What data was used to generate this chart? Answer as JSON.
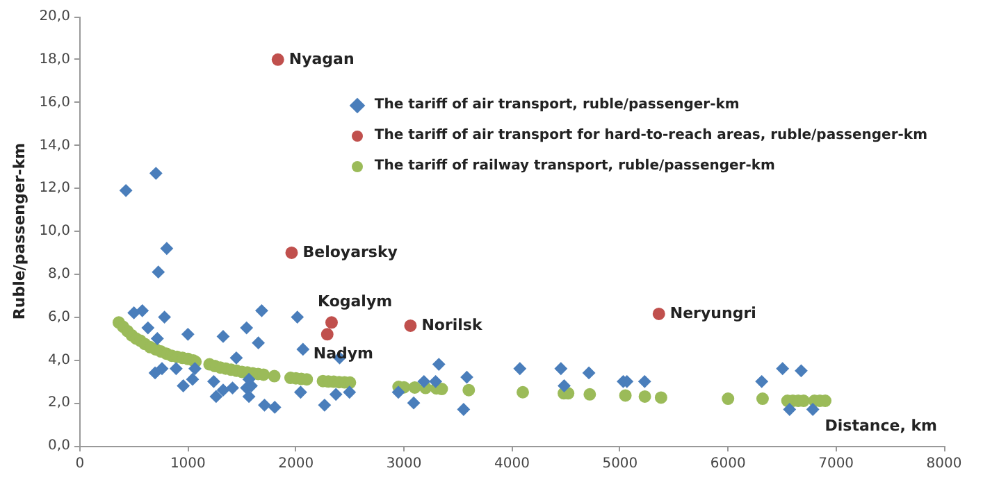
{
  "chart_data": {
    "type": "scatter",
    "xlabel": "Distance, km",
    "ylabel": "Ruble/passenger-km",
    "xlim": [
      0,
      8000
    ],
    "xticks": [
      0,
      1000,
      2000,
      3000,
      4000,
      5000,
      6000,
      7000,
      8000
    ],
    "ylim": [
      0,
      20
    ],
    "yticks": [
      {
        "value": 0,
        "label": "0,0"
      },
      {
        "value": 2,
        "label": "2,0"
      },
      {
        "value": 4,
        "label": "4,0"
      },
      {
        "value": 6,
        "label": "6,0"
      },
      {
        "value": 8,
        "label": "8,0"
      },
      {
        "value": 10,
        "label": "10,0"
      },
      {
        "value": 12,
        "label": "12,0"
      },
      {
        "value": 14,
        "label": "14,0"
      },
      {
        "value": 16,
        "label": "16,0"
      },
      {
        "value": 18,
        "label": "18,0"
      },
      {
        "value": 20,
        "label": "20,0"
      }
    ],
    "grid": false,
    "legend": "top right",
    "series": [
      {
        "name": "The tariff of air transport, ruble/passenger-km",
        "color": "#4a7ebb",
        "marker": "diamond",
        "x": [
          426,
          704,
          804,
          726,
          783,
          500,
          578,
          630,
          717,
          1000,
          1326,
          1543,
          1683,
          1652,
          2013,
          2065,
          2404,
          696,
          760,
          891,
          957,
          1043,
          1065,
          1239,
          1261,
          1326,
          1413,
          1448,
          1543,
          1565,
          1587,
          1565,
          1709,
          1804,
          2043,
          2265,
          2370,
          2496,
          2948,
          3090,
          3185,
          3323,
          3293,
          3582,
          3552,
          4073,
          4453,
          4483,
          4712,
          5030,
          5064,
          5228,
          6312,
          6505,
          6677,
          6570,
          6785
        ],
        "values": [
          11.9,
          12.7,
          9.2,
          8.1,
          6.0,
          6.2,
          6.3,
          5.5,
          5.0,
          5.2,
          5.1,
          5.5,
          6.3,
          4.8,
          6.0,
          4.5,
          4.1,
          3.4,
          3.6,
          3.6,
          2.8,
          3.1,
          3.6,
          3.0,
          2.3,
          2.6,
          2.7,
          4.1,
          2.7,
          2.3,
          2.8,
          3.1,
          1.9,
          1.8,
          2.5,
          1.9,
          2.4,
          2.5,
          2.5,
          2.0,
          3.0,
          3.8,
          3.0,
          3.2,
          1.7,
          3.6,
          3.6,
          2.8,
          3.4,
          3.0,
          3.0,
          3.0,
          3.0,
          3.6,
          3.5,
          1.7,
          1.7
        ]
      },
      {
        "name": "The tariff of air transport for hard-to-reach areas, ruble/passenger-km",
        "color": "#c0504d",
        "marker": "circle",
        "x": [
          1833,
          1960,
          2330,
          2290,
          3060,
          5360
        ],
        "values": [
          18.0,
          9.0,
          5.75,
          5.2,
          5.6,
          6.15
        ]
      },
      {
        "name": "The tariff of railway transport, ruble/passenger-km",
        "color": "#9bbb59",
        "marker": "circle",
        "x": [
          360,
          400,
          440,
          480,
          520,
          560,
          600,
          650,
          700,
          750,
          800,
          850,
          900,
          950,
          1000,
          1050,
          1070,
          1200,
          1250,
          1300,
          1350,
          1400,
          1450,
          1500,
          1550,
          1600,
          1650,
          1700,
          1800,
          1950,
          2000,
          2050,
          2100,
          2250,
          2300,
          2350,
          2400,
          2450,
          2500,
          2950,
          3000,
          3100,
          3200,
          3300,
          3350,
          3600,
          4100,
          4480,
          4520,
          4720,
          5050,
          5230,
          5380,
          6000,
          6320,
          6550,
          6600,
          6650,
          6700,
          6800,
          6850,
          6900
        ],
        "values": [
          5.75,
          5.55,
          5.35,
          5.15,
          5.0,
          4.9,
          4.75,
          4.6,
          4.5,
          4.4,
          4.3,
          4.2,
          4.15,
          4.1,
          4.05,
          3.98,
          3.92,
          3.8,
          3.72,
          3.65,
          3.6,
          3.55,
          3.5,
          3.45,
          3.42,
          3.38,
          3.35,
          3.32,
          3.25,
          3.17,
          3.15,
          3.12,
          3.1,
          3.02,
          3.0,
          2.99,
          2.97,
          2.96,
          2.95,
          2.75,
          2.73,
          2.72,
          2.7,
          2.68,
          2.65,
          2.6,
          2.5,
          2.45,
          2.45,
          2.4,
          2.35,
          2.3,
          2.25,
          2.2,
          2.2,
          2.1,
          2.1,
          2.1,
          2.1,
          2.1,
          2.1,
          2.1
        ]
      }
    ],
    "annotations": [
      {
        "text": "Nyagan",
        "x": 1833,
        "y": 18.0
      },
      {
        "text": "Beloyarsky",
        "x": 1960,
        "y": 9.0
      },
      {
        "text": "Kogalym",
        "x": 2330,
        "y": 5.75
      },
      {
        "text": "Nadym",
        "x": 2290,
        "y": 5.2
      },
      {
        "text": "Norilsk",
        "x": 3060,
        "y": 5.6
      },
      {
        "text": "Neryungri",
        "x": 5360,
        "y": 6.15
      }
    ]
  }
}
